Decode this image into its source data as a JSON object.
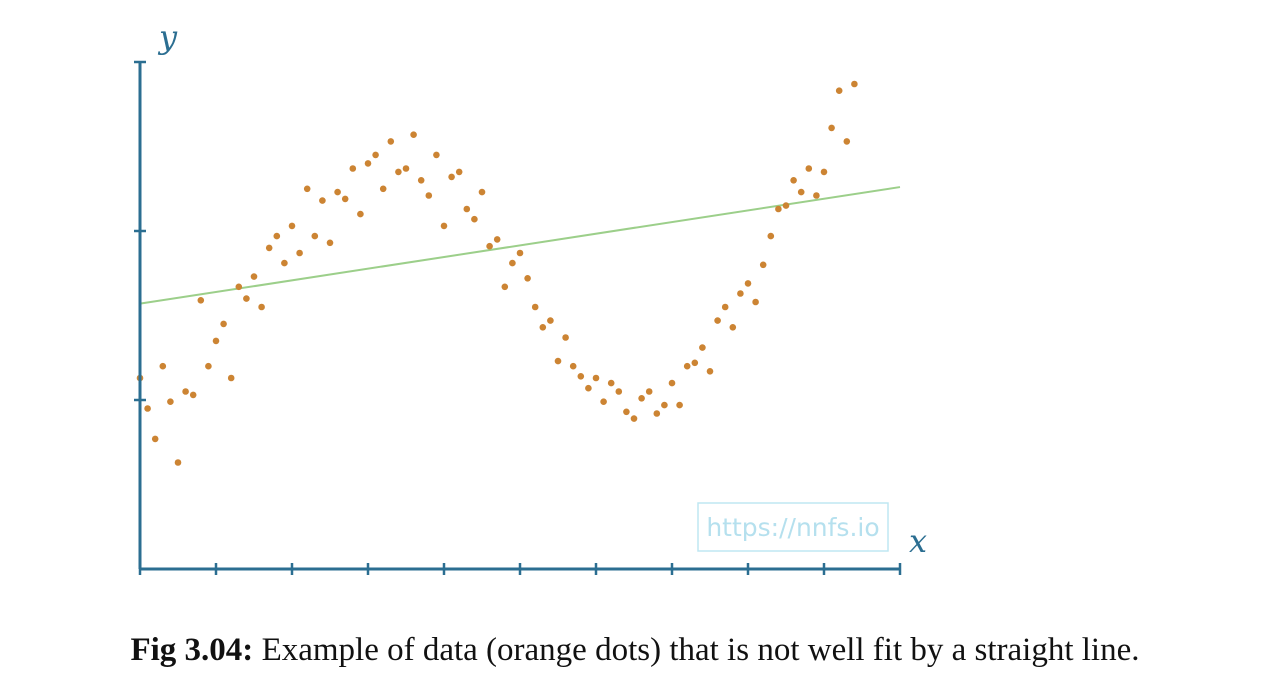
{
  "chart_data": {
    "type": "scatter",
    "xlabel": "x",
    "ylabel": "y",
    "xlim": [
      0,
      1
    ],
    "ylim": [
      -1.25,
      1.75
    ],
    "x_ticks": 10,
    "y_ticks": 3,
    "grid": false,
    "series": [
      {
        "kind": "points",
        "color": "#cc8433",
        "points": [
          [
            0.0,
            -0.12
          ],
          [
            0.01,
            -0.3
          ],
          [
            0.02,
            -0.48
          ],
          [
            0.03,
            -0.05
          ],
          [
            0.04,
            -0.26
          ],
          [
            0.05,
            -0.62
          ],
          [
            0.06,
            -0.2
          ],
          [
            0.07,
            -0.22
          ],
          [
            0.08,
            0.34
          ],
          [
            0.09,
            -0.05
          ],
          [
            0.1,
            0.1
          ],
          [
            0.11,
            0.2
          ],
          [
            0.12,
            -0.12
          ],
          [
            0.13,
            0.42
          ],
          [
            0.14,
            0.35
          ],
          [
            0.15,
            0.48
          ],
          [
            0.16,
            0.3
          ],
          [
            0.17,
            0.65
          ],
          [
            0.18,
            0.72
          ],
          [
            0.19,
            0.56
          ],
          [
            0.2,
            0.78
          ],
          [
            0.21,
            0.62
          ],
          [
            0.22,
            1.0
          ],
          [
            0.23,
            0.72
          ],
          [
            0.24,
            0.93
          ],
          [
            0.25,
            0.68
          ],
          [
            0.26,
            0.98
          ],
          [
            0.27,
            0.94
          ],
          [
            0.28,
            1.12
          ],
          [
            0.29,
            0.85
          ],
          [
            0.3,
            1.15
          ],
          [
            0.31,
            1.2
          ],
          [
            0.32,
            1.0
          ],
          [
            0.33,
            1.28
          ],
          [
            0.34,
            1.1
          ],
          [
            0.35,
            1.12
          ],
          [
            0.36,
            1.32
          ],
          [
            0.37,
            1.05
          ],
          [
            0.38,
            0.96
          ],
          [
            0.39,
            1.2
          ],
          [
            0.4,
            0.78
          ],
          [
            0.41,
            1.07
          ],
          [
            0.42,
            1.1
          ],
          [
            0.43,
            0.88
          ],
          [
            0.44,
            0.82
          ],
          [
            0.45,
            0.98
          ],
          [
            0.46,
            0.66
          ],
          [
            0.47,
            0.7
          ],
          [
            0.48,
            0.42
          ],
          [
            0.49,
            0.56
          ],
          [
            0.5,
            0.62
          ],
          [
            0.51,
            0.47
          ],
          [
            0.52,
            0.3
          ],
          [
            0.53,
            0.18
          ],
          [
            0.54,
            0.22
          ],
          [
            0.55,
            -0.02
          ],
          [
            0.56,
            0.12
          ],
          [
            0.57,
            -0.05
          ],
          [
            0.58,
            -0.11
          ],
          [
            0.59,
            -0.18
          ],
          [
            0.6,
            -0.12
          ],
          [
            0.61,
            -0.26
          ],
          [
            0.62,
            -0.15
          ],
          [
            0.63,
            -0.2
          ],
          [
            0.64,
            -0.32
          ],
          [
            0.65,
            -0.36
          ],
          [
            0.66,
            -0.24
          ],
          [
            0.67,
            -0.2
          ],
          [
            0.68,
            -0.33
          ],
          [
            0.69,
            -0.28
          ],
          [
            0.7,
            -0.15
          ],
          [
            0.71,
            -0.28
          ],
          [
            0.72,
            -0.05
          ],
          [
            0.73,
            -0.03
          ],
          [
            0.74,
            0.06
          ],
          [
            0.75,
            -0.08
          ],
          [
            0.76,
            0.22
          ],
          [
            0.77,
            0.3
          ],
          [
            0.78,
            0.18
          ],
          [
            0.79,
            0.38
          ],
          [
            0.8,
            0.44
          ],
          [
            0.81,
            0.33
          ],
          [
            0.82,
            0.55
          ],
          [
            0.83,
            0.72
          ],
          [
            0.84,
            0.88
          ],
          [
            0.85,
            0.9
          ],
          [
            0.86,
            1.05
          ],
          [
            0.87,
            0.98
          ],
          [
            0.88,
            1.12
          ],
          [
            0.89,
            0.96
          ],
          [
            0.9,
            1.1
          ],
          [
            0.91,
            1.36
          ],
          [
            0.92,
            1.58
          ],
          [
            0.93,
            1.28
          ],
          [
            0.94,
            1.62
          ]
        ]
      },
      {
        "kind": "line",
        "color": "#9ccf8a",
        "points": [
          [
            0.0,
            0.32
          ],
          [
            1.0,
            1.01
          ]
        ]
      }
    ]
  },
  "watermark": "https://nnfs.io",
  "caption": {
    "label": "Fig 3.04:",
    "text": " Example of data (orange dots) that is not well fit by a straight line."
  }
}
